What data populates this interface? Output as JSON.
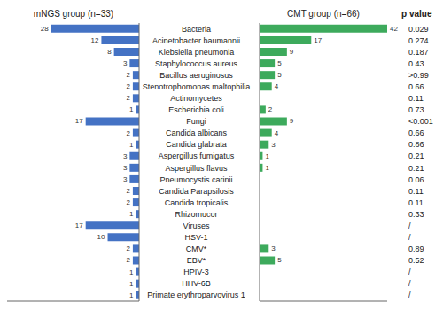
{
  "chart_data": {
    "type": "bar",
    "orientation": "horizontal",
    "categories": [
      "Bacteria",
      "Acinetobacter baumannii",
      "Klebsiella pneumonia",
      "Staphylococcus aureus",
      "Bacillus aeruginosus",
      "Stenotrophomonas maltophilia",
      "Actinomycetes",
      "Escherichia coli",
      "Fungi",
      "Candida albicans",
      "Candida glabrata",
      "Aspergillus fumigatus",
      "Aspergillus flavus",
      "Pneumocystis carinii",
      "Candida Parapsilosis",
      "Candida tropicalis",
      "Rhizomucor",
      "Viruses",
      "HSV-1",
      "CMV*",
      "EBV*",
      "HPIV-3",
      "HHV-6B",
      "Primate erythroparvovirus 1"
    ],
    "series": [
      {
        "name": "mNGS group (n=33)",
        "color": "#4472C4",
        "values": [
          28,
          12,
          8,
          3,
          2,
          2,
          2,
          1,
          17,
          2,
          1,
          3,
          3,
          3,
          2,
          2,
          1,
          17,
          10,
          2,
          2,
          1,
          1,
          1
        ]
      },
      {
        "name": "CMT group (n=66)",
        "color": "#3DAA5C",
        "values": [
          42,
          17,
          9,
          5,
          5,
          4,
          0,
          2,
          9,
          4,
          3,
          1,
          1,
          0,
          0,
          0,
          0,
          0,
          0,
          3,
          5,
          0,
          0,
          0
        ]
      }
    ],
    "xlim": [
      0,
      42
    ],
    "data_labels": true,
    "tick_labels": "y",
    "grid": false,
    "p_values": {
      "name": "p value",
      "labels": [
        "0.029",
        "0.274",
        "0.187",
        "0.43",
        ">0.99",
        "0.66",
        "0.11",
        "0.73",
        "<0.001",
        "0.66",
        "0.86",
        "0.21",
        "0.21",
        "0.06",
        "0.11",
        "0.11",
        "0.33",
        "/",
        "/",
        "0.89",
        "0.52",
        "/",
        "/",
        "/"
      ]
    }
  }
}
